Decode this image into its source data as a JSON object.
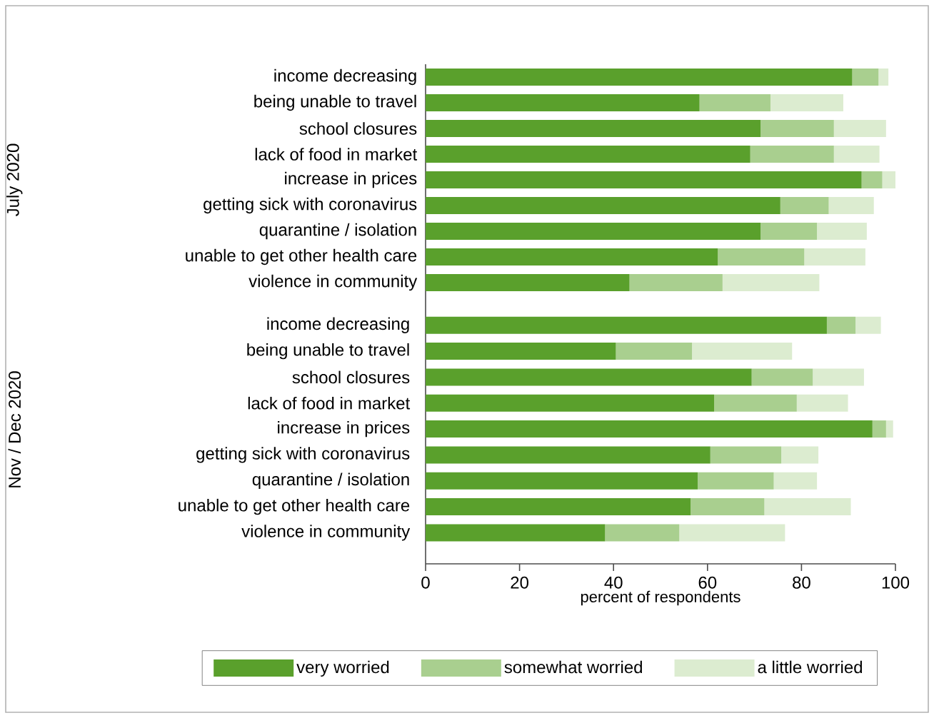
{
  "chart_data": [
    {
      "type": "bar",
      "orientation": "horizontal",
      "stacked": true,
      "ylabel": "July 2020",
      "categories": [
        "income decreasing",
        "being unable to travel",
        "school closures",
        "lack of food in market",
        "increase in prices",
        "getting sick with coronavirus",
        "quarantine / isolation",
        "unable to get other health care",
        "violence in community"
      ],
      "series": [
        {
          "color": "#5aa02c",
          "values": [
            90.8,
            58.3,
            71.3,
            69.1,
            92.8,
            75.5,
            71.3,
            62.2,
            43.4
          ]
        },
        {
          "color": "#a9cf8f",
          "values": [
            5.6,
            15.1,
            15.6,
            17.8,
            4.4,
            10.3,
            12.0,
            18.4,
            19.8
          ]
        },
        {
          "color": "#dcecd0",
          "values": [
            2.1,
            15.5,
            11.1,
            9.7,
            2.8,
            9.6,
            10.6,
            13.0,
            20.6
          ]
        }
      ],
      "xlim": [
        0,
        100
      ],
      "xticks": [
        0,
        20,
        40,
        60,
        80,
        100
      ],
      "tick_labels": "y"
    },
    {
      "type": "bar",
      "orientation": "horizontal",
      "stacked": true,
      "ylabel": "Nov / Dec 2020",
      "xlabel": "percent of respondents",
      "categories": [
        "income decreasing",
        "being unable to travel",
        "school closures",
        "lack of food in market",
        "increase in prices",
        "getting sick with coronavirus",
        "quarantine / isolation",
        "unable to get other health care",
        "violence in community"
      ],
      "series": [
        {
          "name": "very worried",
          "color": "#5aa02c",
          "values": [
            85.4,
            40.5,
            69.4,
            61.4,
            95.1,
            60.6,
            57.9,
            56.4,
            38.2
          ]
        },
        {
          "name": "somewhat worried",
          "color": "#a9cf8f",
          "values": [
            6.1,
            16.2,
            13.0,
            17.6,
            2.9,
            15.1,
            16.2,
            15.7,
            15.8
          ]
        },
        {
          "name": "a little worried",
          "color": "#dcecd0",
          "values": [
            5.4,
            21.3,
            10.9,
            10.9,
            1.5,
            7.9,
            9.2,
            18.4,
            22.5
          ]
        }
      ],
      "xlim": [
        0,
        100
      ],
      "xticks": [
        0,
        20,
        40,
        60,
        80,
        100
      ],
      "legend": "bottom"
    }
  ]
}
